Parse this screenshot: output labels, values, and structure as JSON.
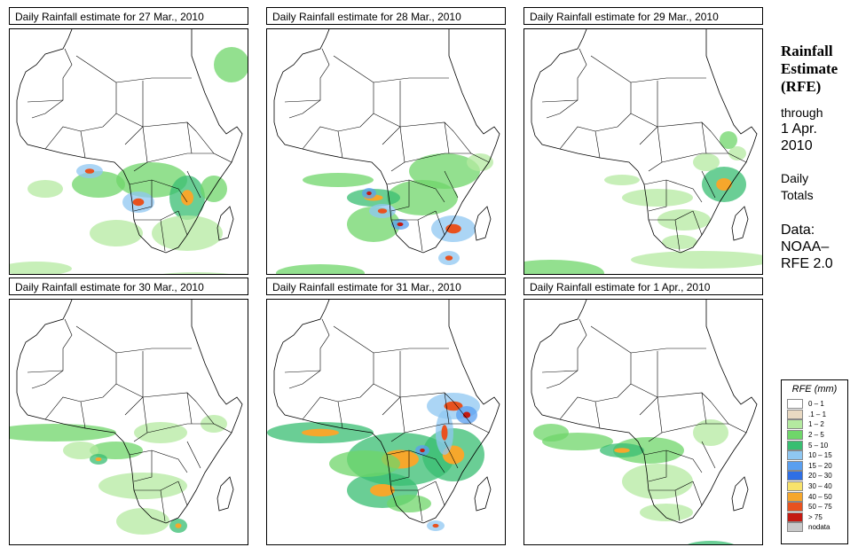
{
  "panels": [
    {
      "title": "Daily Rainfall estimate for  27 Mar., 2010",
      "rain": [
        [
          100,
          175,
          30,
          15,
          3
        ],
        [
          160,
          170,
          40,
          20,
          3
        ],
        [
          200,
          190,
          20,
          25,
          4
        ],
        [
          145,
          195,
          18,
          12,
          5
        ],
        [
          230,
          180,
          15,
          15,
          3
        ],
        [
          120,
          230,
          30,
          15,
          2
        ],
        [
          40,
          180,
          20,
          10,
          2
        ],
        [
          250,
          40,
          20,
          20,
          3
        ],
        [
          200,
          230,
          40,
          20,
          2
        ],
        [
          210,
          280,
          50,
          6,
          2
        ],
        [
          90,
          160,
          15,
          8,
          5
        ],
        [
          30,
          270,
          40,
          8,
          1
        ]
      ]
    },
    {
      "title": "Daily Rainfall estimate for  28 Mar., 2010",
      "rain": [
        [
          200,
          160,
          40,
          20,
          3
        ],
        [
          175,
          190,
          40,
          20,
          3
        ],
        [
          120,
          190,
          30,
          10,
          4
        ],
        [
          120,
          220,
          30,
          20,
          3
        ],
        [
          210,
          225,
          25,
          15,
          5
        ],
        [
          80,
          170,
          40,
          8,
          3
        ],
        [
          240,
          150,
          15,
          10,
          2
        ],
        [
          60,
          275,
          50,
          10,
          3
        ],
        [
          205,
          258,
          12,
          8,
          5
        ],
        [
          115,
          185,
          8,
          6,
          6
        ],
        [
          150,
          220,
          10,
          6,
          6
        ],
        [
          130,
          205,
          15,
          8,
          5
        ]
      ]
    },
    {
      "title": "Daily Rainfall estimate for  29 Mar., 2010",
      "rain": [
        [
          225,
          175,
          25,
          20,
          4
        ],
        [
          180,
          215,
          30,
          12,
          2
        ],
        [
          150,
          190,
          40,
          10,
          1
        ],
        [
          205,
          150,
          15,
          10,
          2
        ],
        [
          240,
          140,
          10,
          8,
          2
        ],
        [
          30,
          275,
          60,
          15,
          3
        ],
        [
          200,
          260,
          80,
          10,
          2
        ],
        [
          230,
          125,
          10,
          10,
          3
        ],
        [
          175,
          240,
          20,
          8,
          1
        ],
        [
          110,
          170,
          20,
          6,
          1
        ]
      ]
    },
    {
      "title": "Daily Rainfall estimate for  30 Mar., 2010",
      "rain": [
        [
          50,
          150,
          70,
          10,
          3
        ],
        [
          150,
          210,
          50,
          15,
          2
        ],
        [
          150,
          250,
          30,
          15,
          2
        ],
        [
          120,
          170,
          30,
          10,
          3
        ],
        [
          170,
          150,
          30,
          12,
          2
        ],
        [
          80,
          170,
          20,
          10,
          2
        ],
        [
          190,
          255,
          10,
          8,
          4
        ],
        [
          100,
          180,
          10,
          6,
          4
        ],
        [
          230,
          140,
          15,
          10,
          1
        ]
      ]
    },
    {
      "title": "Daily Rainfall estimate for  31 Mar., 2010",
      "rain": [
        [
          60,
          150,
          60,
          12,
          4
        ],
        [
          150,
          180,
          60,
          30,
          4
        ],
        [
          130,
          215,
          40,
          20,
          4
        ],
        [
          210,
          175,
          35,
          30,
          4
        ],
        [
          210,
          120,
          30,
          15,
          5
        ],
        [
          225,
          130,
          12,
          10,
          6
        ],
        [
          200,
          150,
          10,
          25,
          5
        ],
        [
          175,
          170,
          8,
          6,
          6
        ],
        [
          110,
          185,
          40,
          15,
          3
        ],
        [
          230,
          290,
          80,
          10,
          3
        ],
        [
          160,
          230,
          25,
          10,
          3
        ],
        [
          190,
          255,
          10,
          6,
          5
        ]
      ]
    },
    {
      "title": "Daily Rainfall estimate for  1 Apr., 2010",
      "rain": [
        [
          60,
          160,
          40,
          10,
          3
        ],
        [
          140,
          170,
          40,
          15,
          3
        ],
        [
          150,
          205,
          40,
          20,
          2
        ],
        [
          210,
          150,
          20,
          15,
          2
        ],
        [
          210,
          280,
          30,
          8,
          4
        ],
        [
          210,
          285,
          10,
          5,
          6
        ],
        [
          30,
          150,
          20,
          10,
          3
        ],
        [
          160,
          240,
          30,
          10,
          2
        ],
        [
          110,
          170,
          25,
          8,
          4
        ]
      ]
    }
  ],
  "side": {
    "title_line1": "Rainfall",
    "title_line2": "Estimate",
    "title_line3": "(RFE)",
    "through": "through",
    "date_line1": "1 Apr.",
    "date_line2": "2010",
    "daily_line1": "Daily",
    "daily_line2": "Totals",
    "data_line1": "Data:",
    "data_line2": "NOAA–",
    "data_line3": "RFE 2.0"
  },
  "legend": {
    "title": "RFE (mm)",
    "items": [
      {
        "label": "0 – 1",
        "color": "#ffffff"
      },
      {
        "label": ".1 – 1",
        "color": "#e9d9c2"
      },
      {
        "label": "1 – 2",
        "color": "#b4eaa0"
      },
      {
        "label": "2 – 5",
        "color": "#6fd66a"
      },
      {
        "label": "5 – 10",
        "color": "#38be71"
      },
      {
        "label": "10 – 15",
        "color": "#8fc7f2"
      },
      {
        "label": "15 – 20",
        "color": "#5a9ff0"
      },
      {
        "label": "20 – 30",
        "color": "#2f6fe4"
      },
      {
        "label": "30 – 40",
        "color": "#f8e26a"
      },
      {
        "label": "40 – 50",
        "color": "#f6a72c"
      },
      {
        "label": "50 – 75",
        "color": "#e8521f"
      },
      {
        "label": "> 75",
        "color": "#c41a12"
      },
      {
        "label": "nodata",
        "color": "#c8c8c8"
      }
    ]
  }
}
